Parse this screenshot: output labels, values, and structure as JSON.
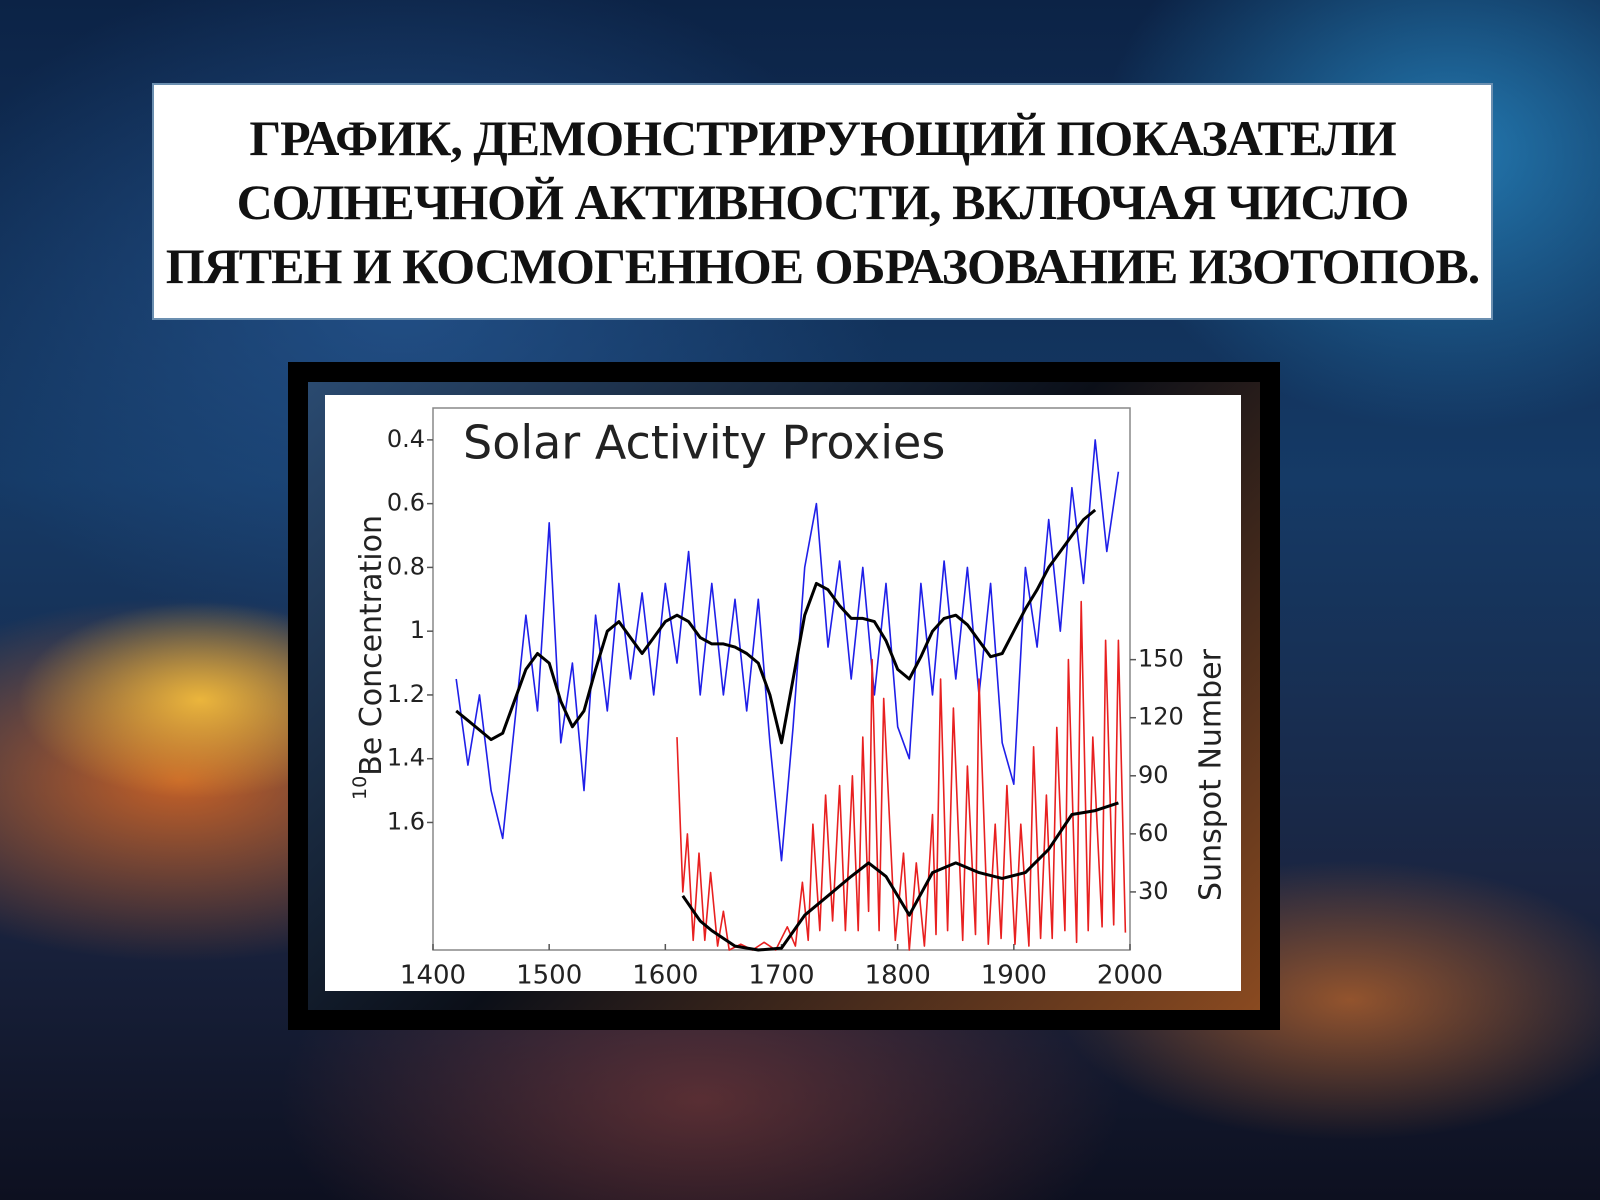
{
  "title": "ГРАФИК, ДЕМОНСТРИРУЮЩИЙ ПОКАЗАТЕЛИ СОЛНЕЧНОЙ АКТИВНОСТИ, ВКЛЮЧАЯ ЧИСЛО ПЯТЕН И КОСМОГЕННОЕ ОБРАЗОВАНИЕ ИЗОТОПОВ.",
  "chart_data": {
    "type": "line",
    "title": "Solar Activity Proxies",
    "ylabel_superscript": "10",
    "ylabel": "Be Concentration",
    "y2label": "Sunspot Number",
    "xlim": [
      1400,
      2000
    ],
    "xticks": [
      1400,
      1500,
      1600,
      1700,
      1800,
      1900,
      2000
    ],
    "ylim": [
      2.0,
      0.3
    ],
    "yticks": [
      0.4,
      0.6,
      0.8,
      1,
      1.2,
      1.4,
      1.6
    ],
    "y2lim": [
      0,
      280
    ],
    "y2ticks": [
      30,
      60,
      90,
      120,
      150
    ],
    "series": [
      {
        "color": "#1f1fe8",
        "x": [
          1420,
          1430,
          1440,
          1450,
          1460,
          1470,
          1480,
          1490,
          1500,
          1510,
          1520,
          1530,
          1540,
          1550,
          1560,
          1570,
          1580,
          1590,
          1600,
          1610,
          1620,
          1630,
          1640,
          1650,
          1660,
          1670,
          1680,
          1690,
          1700,
          1710,
          1720,
          1730,
          1740,
          1750,
          1760,
          1770,
          1780,
          1790,
          1800,
          1810,
          1820,
          1830,
          1840,
          1850,
          1860,
          1870,
          1880,
          1890,
          1900,
          1910,
          1920,
          1930,
          1940,
          1950,
          1960,
          1970,
          1980,
          1990
        ],
        "values": [
          1.15,
          1.42,
          1.2,
          1.5,
          1.65,
          1.3,
          0.95,
          1.25,
          0.66,
          1.35,
          1.1,
          1.5,
          0.95,
          1.25,
          0.85,
          1.15,
          0.88,
          1.2,
          0.85,
          1.1,
          0.75,
          1.2,
          0.85,
          1.2,
          0.9,
          1.25,
          0.9,
          1.35,
          1.72,
          1.3,
          0.8,
          0.6,
          1.05,
          0.78,
          1.15,
          0.8,
          1.2,
          0.85,
          1.3,
          1.4,
          0.85,
          1.2,
          0.78,
          1.15,
          0.8,
          1.2,
          0.85,
          1.35,
          1.48,
          0.8,
          1.05,
          0.65,
          1.0,
          0.55,
          0.85,
          0.4,
          0.75,
          0.5
        ]
      },
      {
        "color": "#000000",
        "x": [
          1420,
          1430,
          1440,
          1450,
          1460,
          1470,
          1480,
          1490,
          1500,
          1510,
          1520,
          1530,
          1540,
          1550,
          1560,
          1570,
          1580,
          1590,
          1600,
          1610,
          1620,
          1630,
          1640,
          1650,
          1660,
          1670,
          1680,
          1690,
          1700,
          1710,
          1720,
          1730,
          1740,
          1750,
          1760,
          1770,
          1780,
          1790,
          1800,
          1810,
          1820,
          1830,
          1840,
          1850,
          1860,
          1870,
          1880,
          1890,
          1900,
          1910,
          1920,
          1930,
          1940,
          1950,
          1960,
          1970
        ],
        "values": [
          1.25,
          1.28,
          1.31,
          1.34,
          1.32,
          1.22,
          1.12,
          1.07,
          1.1,
          1.22,
          1.3,
          1.25,
          1.12,
          1.0,
          0.97,
          1.02,
          1.07,
          1.02,
          0.97,
          0.95,
          0.97,
          1.02,
          1.04,
          1.04,
          1.05,
          1.07,
          1.1,
          1.2,
          1.35,
          1.15,
          0.95,
          0.85,
          0.87,
          0.92,
          0.96,
          0.96,
          0.97,
          1.03,
          1.12,
          1.15,
          1.08,
          1.0,
          0.96,
          0.95,
          0.98,
          1.03,
          1.08,
          1.07,
          1.0,
          0.93,
          0.87,
          0.8,
          0.75,
          0.7,
          0.65,
          0.62
        ]
      },
      {
        "color": "#e82020",
        "axis": "y2",
        "x": [
          1610,
          1615,
          1619,
          1624,
          1629,
          1634,
          1639,
          1645,
          1650,
          1655,
          1665,
          1675,
          1685,
          1695,
          1705,
          1712,
          1718,
          1723,
          1727,
          1733,
          1738,
          1744,
          1750,
          1755,
          1761,
          1766,
          1770,
          1775,
          1778,
          1784,
          1788,
          1798,
          1805,
          1810,
          1816,
          1823,
          1830,
          1833,
          1837,
          1843,
          1848,
          1856,
          1860,
          1867,
          1870,
          1878,
          1884,
          1889,
          1894,
          1901,
          1906,
          1913,
          1917,
          1923,
          1928,
          1933,
          1937,
          1944,
          1947,
          1954,
          1958,
          1964,
          1968,
          1976,
          1979,
          1986,
          1990,
          1996
        ],
        "values": [
          110,
          30,
          60,
          5,
          50,
          5,
          40,
          2,
          20,
          0,
          3,
          0,
          4,
          0,
          12,
          2,
          35,
          5,
          65,
          10,
          80,
          15,
          85,
          10,
          90,
          10,
          110,
          20,
          150,
          10,
          130,
          5,
          50,
          0,
          45,
          2,
          70,
          8,
          140,
          10,
          125,
          5,
          95,
          8,
          140,
          3,
          65,
          6,
          85,
          3,
          65,
          2,
          105,
          6,
          80,
          6,
          115,
          10,
          150,
          4,
          180,
          10,
          110,
          12,
          160,
          13,
          160,
          9
        ]
      },
      {
        "color": "#000000",
        "axis": "y2",
        "x": [
          1615,
          1630,
          1640,
          1660,
          1680,
          1700,
          1720,
          1740,
          1760,
          1775,
          1790,
          1810,
          1830,
          1850,
          1870,
          1890,
          1910,
          1930,
          1950,
          1970,
          1990
        ],
        "values": [
          28,
          15,
          10,
          2,
          0,
          1,
          18,
          28,
          38,
          45,
          38,
          18,
          40,
          45,
          40,
          37,
          40,
          52,
          70,
          72,
          76
        ]
      }
    ]
  }
}
